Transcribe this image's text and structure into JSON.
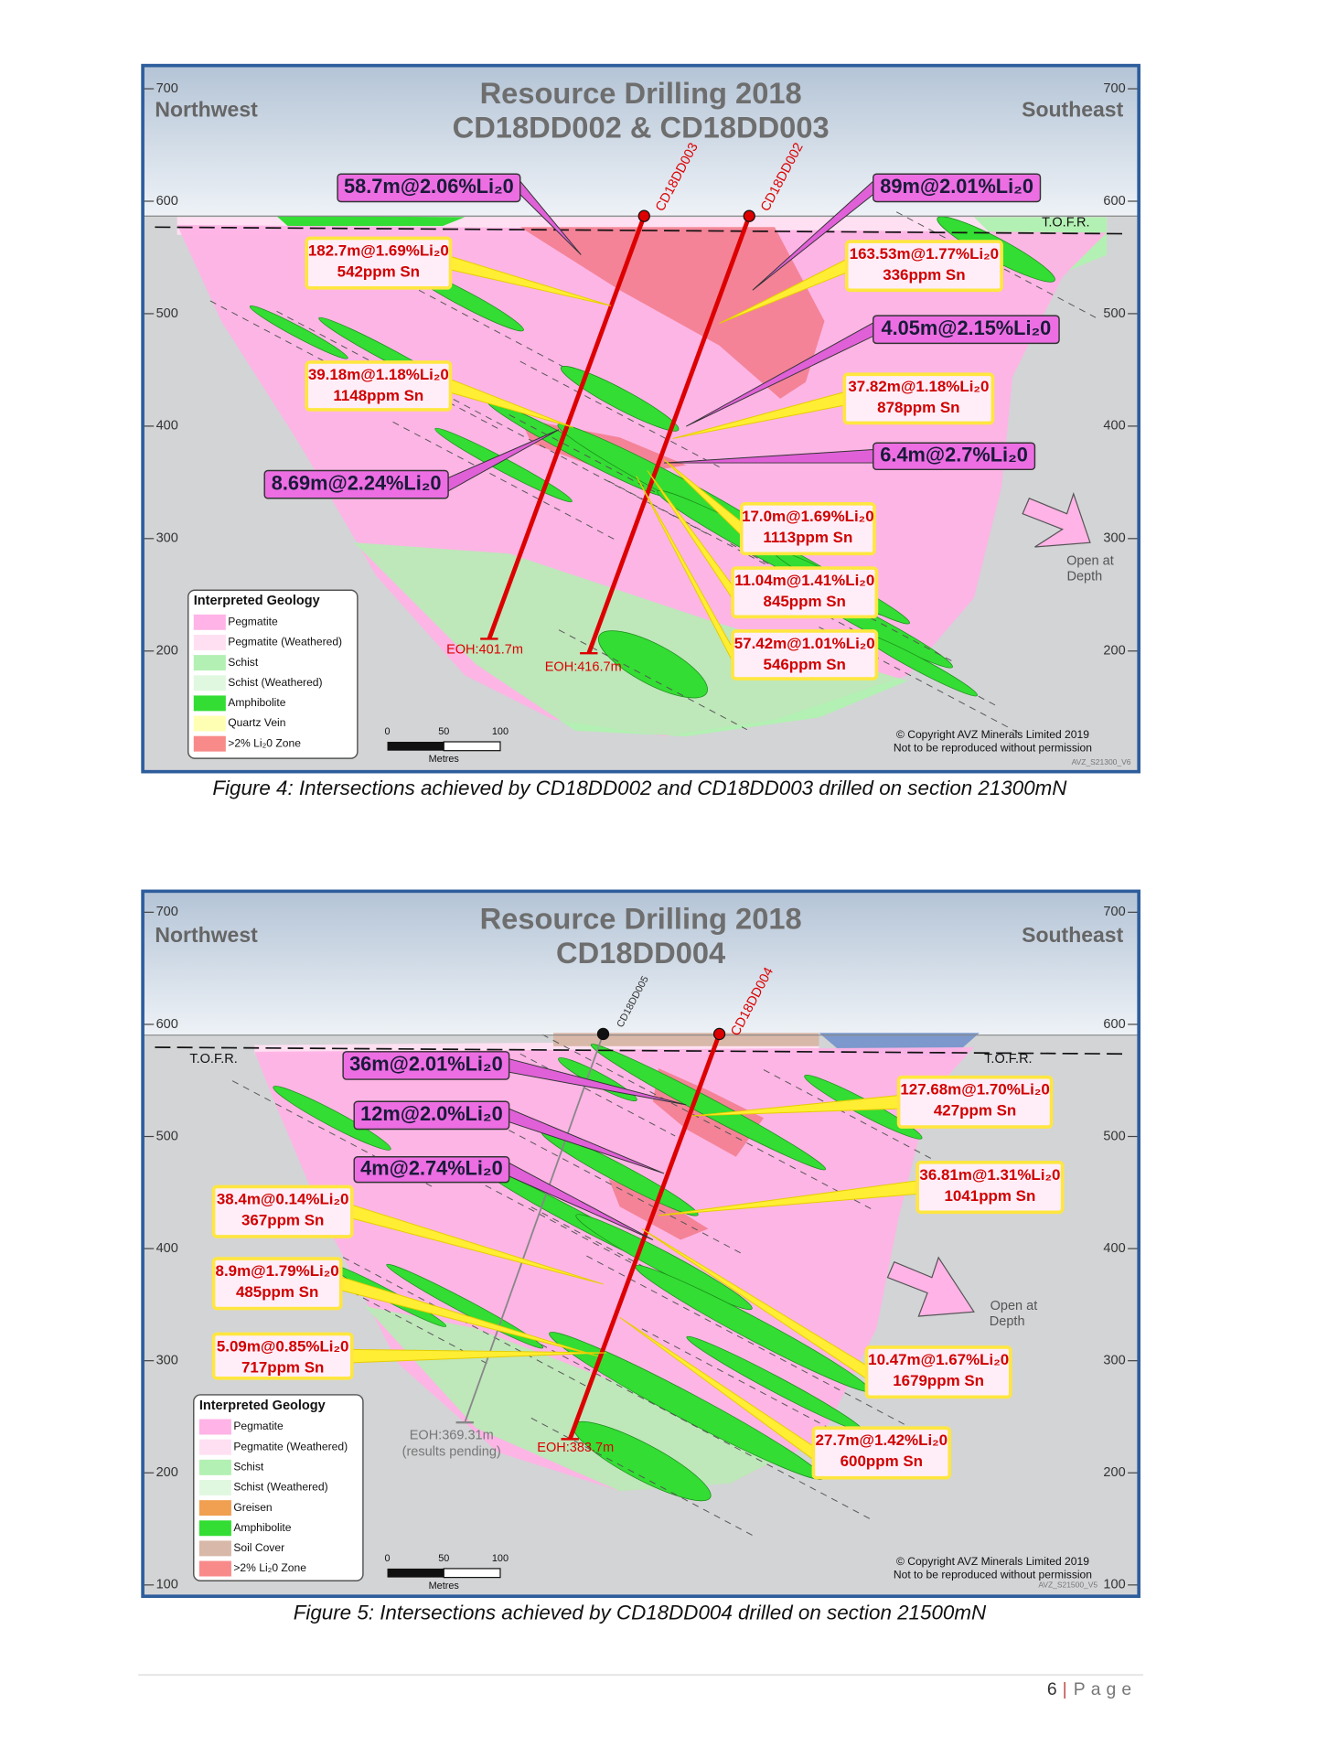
{
  "figures": [
    {
      "title": [
        "Resource Drilling 2018",
        "CD18DD002 & CD18DD003"
      ],
      "left_label": "Northwest",
      "right_label": "Southeast",
      "axis_left": [
        "700",
        "600",
        "500",
        "400",
        "300",
        "200"
      ],
      "axis_right": [
        "700",
        "600",
        "500",
        "400",
        "300",
        "200"
      ],
      "tofr": [
        "T.O.F.R."
      ],
      "holes": [
        "CD18DD003",
        "CD18DD002"
      ],
      "eoh": [
        "EOH:401.7m",
        "EOH:416.7m"
      ],
      "intersections": [
        [
          "58.7m@2.06%Li₂0"
        ],
        [
          "182.7m@1.69%Li₂0",
          "542ppm Sn"
        ],
        [
          "39.18m@1.18%Li₂0",
          "1148ppm Sn"
        ],
        [
          "8.69m@2.24%Li₂0"
        ],
        [
          "89m@2.01%Li₂0"
        ],
        [
          "163.53m@1.77%Li₂0",
          "336ppm Sn"
        ],
        [
          "4.05m@2.15%Li₂0"
        ],
        [
          "37.82m@1.18%Li₂0",
          "878ppm Sn"
        ],
        [
          "6.4m@2.7%Li₂0"
        ],
        [
          "17.0m@1.69%Li₂0",
          "1113ppm Sn"
        ],
        [
          "11.04m@1.41%Li₂0",
          "845ppm Sn"
        ],
        [
          "57.42m@1.01%Li₂0",
          "546ppm Sn"
        ]
      ],
      "open_at_depth": [
        "Open at",
        "Depth"
      ],
      "legend": {
        "title": "Interpreted Geology",
        "items": [
          {
            "label": "Pegmatite",
            "color": "#ffb3e6"
          },
          {
            "label": "Pegmatite (Weathered)",
            "color": "#ffe0f2"
          },
          {
            "label": "Schist",
            "color": "#b3f0b3"
          },
          {
            "label": "Schist (Weathered)",
            "color": "#e0f8e0"
          },
          {
            "label": "Amphibolite",
            "color": "#33dd33"
          },
          {
            "label": "Quartz Vein",
            "color": "#ffffb3"
          },
          {
            "label": ">2% Li₂0 Zone",
            "color": "#f98a8a"
          }
        ]
      },
      "scale": [
        "0",
        "50",
        "100",
        "Metres"
      ],
      "copyright": [
        "© Copyright AVZ Minerals Limited 2019",
        "Not to be reproduced without permission"
      ],
      "code": "AVZ_S21300_V6",
      "caption": "Figure 4: Intersections achieved by CD18DD002 and CD18DD003 drilled on section 21300mN"
    },
    {
      "title": [
        "Resource Drilling 2018",
        "CD18DD004"
      ],
      "left_label": "Northwest",
      "right_label": "Southeast",
      "axis_left": [
        "700",
        "600",
        "500",
        "400",
        "300",
        "200",
        "100"
      ],
      "axis_right": [
        "700",
        "600",
        "500",
        "400",
        "300",
        "200",
        "100"
      ],
      "tofr": [
        "T.O.F.R.",
        "T.O.F.R."
      ],
      "holes": [
        "CD18DD005",
        "CD18DD004"
      ],
      "eoh": [
        "EOH:369.31m",
        "(results pending)",
        "EOH:383.7m"
      ],
      "intersections": [
        [
          "36m@2.01%Li₂0"
        ],
        [
          "12m@2.0%Li₂0"
        ],
        [
          "4m@2.74%Li₂0"
        ],
        [
          "38.4m@0.14%Li₂0",
          "367ppm Sn"
        ],
        [
          "8.9m@1.79%Li₂0",
          "485ppm Sn"
        ],
        [
          "5.09m@0.85%Li₂0",
          "717ppm Sn"
        ],
        [
          "127.68m@1.70%Li₂0",
          "427ppm Sn"
        ],
        [
          "36.81m@1.31%Li₂0",
          "1041ppm Sn"
        ],
        [
          "10.47m@1.67%Li₂0",
          "1679ppm Sn"
        ],
        [
          "27.7m@1.42%Li₂0",
          "600ppm Sn"
        ]
      ],
      "open_at_depth": [
        "Open at",
        "Depth"
      ],
      "legend": {
        "title": "Interpreted Geology",
        "items": [
          {
            "label": "Pegmatite",
            "color": "#ffb3e6"
          },
          {
            "label": "Pegmatite (Weathered)",
            "color": "#ffe0f2"
          },
          {
            "label": "Schist",
            "color": "#b3f0b3"
          },
          {
            "label": "Schist (Weathered)",
            "color": "#e0f8e0"
          },
          {
            "label": "Greisen",
            "color": "#f0a050"
          },
          {
            "label": "Amphibolite",
            "color": "#33dd33"
          },
          {
            "label": "Soil Cover",
            "color": "#d8b8a8"
          },
          {
            "label": ">2% Li₂0 Zone",
            "color": "#f98a8a"
          }
        ]
      },
      "scale": [
        "0",
        "50",
        "100",
        "Metres"
      ],
      "copyright": [
        "© Copyright AVZ Minerals Limited 2019",
        "Not to be reproduced without permission"
      ],
      "code": "AVZ_S21500_V5",
      "caption": "Figure 5: Intersections achieved by CD18DD004 drilled on section 21500mN"
    }
  ],
  "footer": {
    "page": "6",
    "label": "Page"
  }
}
